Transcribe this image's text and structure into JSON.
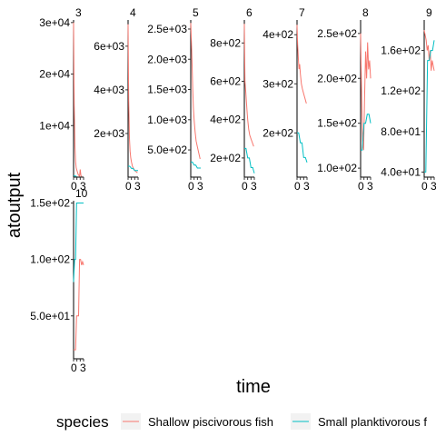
{
  "chart_data": {
    "type": "line",
    "xlabel": "time",
    "ylabel": "atoutput",
    "x_tick_labels": [
      "0",
      "3"
    ],
    "legend": {
      "title": "species",
      "position": "bottom",
      "entries": [
        {
          "name": "Shallow piscivorous fish",
          "color": "#f8766d"
        },
        {
          "name": "Small planktivorous f",
          "color": "#00bfc4"
        }
      ]
    },
    "panels": [
      {
        "label": "3",
        "ylim": [
          0,
          30500
        ],
        "yticks": [
          {
            "v": 10000,
            "t": "1e+04"
          },
          {
            "v": 20000,
            "t": "2e+04"
          },
          {
            "v": 30000,
            "t": "3e+04"
          }
        ],
        "xlim": [
          0,
          3
        ],
        "series": [
          {
            "name": "Shallow piscivorous fish",
            "x": [
              0,
              0.2,
              0.4,
              0.6,
              0.8,
              1,
              1.2,
              1.4,
              1.6,
              1.8,
              2,
              2.2,
              2.4
            ],
            "y": [
              30000,
              14000,
              6000,
              3000,
              1800,
              1300,
              900,
              500,
              300,
              200,
              1500,
              300,
              100
            ]
          },
          {
            "name": "Small planktivorous f",
            "x": [
              0,
              0.3,
              0.6,
              0.9
            ],
            "y": [
              300,
              250,
              200,
              150
            ]
          }
        ]
      },
      {
        "label": "4",
        "ylim": [
          0,
          7200
        ],
        "yticks": [
          {
            "v": 2000,
            "t": "2e+03"
          },
          {
            "v": 4000,
            "t": "4e+03"
          },
          {
            "v": 6000,
            "t": "6e+03"
          }
        ],
        "xlim": [
          0,
          3
        ],
        "series": [
          {
            "name": "Shallow piscivorous fish",
            "x": [
              0,
              0.2,
              0.4,
              0.6,
              0.8,
              1,
              1.3,
              1.6,
              2,
              2.4,
              2.8
            ],
            "y": [
              7000,
              3500,
              1800,
              1200,
              900,
              700,
              500,
              400,
              300,
              250,
              200
            ]
          },
          {
            "name": "Small planktivorous f",
            "x": [
              0,
              0.5,
              1,
              1.5,
              2,
              2.5,
              3
            ],
            "y": [
              500,
              500,
              400,
              400,
              300,
              300,
              300
            ]
          }
        ]
      },
      {
        "label": "5",
        "ylim": [
          50,
          2650
        ],
        "yticks": [
          {
            "v": 500,
            "t": "5.0e+02"
          },
          {
            "v": 1000,
            "t": "1.0e+03"
          },
          {
            "v": 1500,
            "t": "1.5e+03"
          },
          {
            "v": 2000,
            "t": "2.0e+03"
          },
          {
            "v": 2500,
            "t": "2.5e+03"
          }
        ],
        "xlim": [
          0,
          3
        ],
        "series": [
          {
            "name": "Shallow piscivorous fish",
            "x": [
              0,
              0.2,
              0.4,
              0.6,
              0.8,
              1,
              1.3,
              1.6,
              2,
              2.4,
              2.8
            ],
            "y": [
              2600,
              2300,
              1900,
              1500,
              1200,
              1000,
              800,
              650,
              550,
              450,
              350
            ]
          },
          {
            "name": "Small planktivorous f",
            "x": [
              0,
              0.5,
              1,
              1.5,
              2,
              2.5,
              3
            ],
            "y": [
              300,
              300,
              250,
              250,
              200,
              200,
              200
            ]
          }
        ]
      },
      {
        "label": "6",
        "ylim": [
          100,
          920
        ],
        "yticks": [
          {
            "v": 200,
            "t": "2e+02"
          },
          {
            "v": 400,
            "t": "4e+02"
          },
          {
            "v": 600,
            "t": "6e+02"
          },
          {
            "v": 800,
            "t": "8e+02"
          }
        ],
        "xlim": [
          0,
          3
        ],
        "series": [
          {
            "name": "Shallow piscivorous fish",
            "x": [
              0,
              0.2,
              0.4,
              0.6,
              0.8,
              1,
              1.3,
              1.6,
              2,
              2.4,
              2.8
            ],
            "y": [
              900,
              600,
              550,
              500,
              450,
              400,
              350,
              320,
              300,
              280,
              260
            ]
          },
          {
            "name": "Small planktivorous f",
            "x": [
              0,
              0.5,
              1,
              1.5,
              2,
              2.5,
              3
            ],
            "y": [
              250,
              250,
              200,
              200,
              150,
              150,
              120
            ]
          }
        ]
      },
      {
        "label": "7",
        "ylim": [
          110,
          430
        ],
        "yticks": [
          {
            "v": 200,
            "t": "2e+02"
          },
          {
            "v": 300,
            "t": "3e+02"
          },
          {
            "v": 400,
            "t": "4e+02"
          }
        ],
        "xlim": [
          0,
          3
        ],
        "series": [
          {
            "name": "Shallow piscivorous fish",
            "x": [
              0,
              0.2,
              0.4,
              0.6,
              0.8,
              1,
              1.3,
              1.6,
              2,
              2.4,
              2.8
            ],
            "y": [
              420,
              380,
              350,
              330,
              340,
              320,
              300,
              290,
              280,
              270,
              260
            ]
          },
          {
            "name": "Small planktivorous f",
            "x": [
              0,
              0.5,
              1,
              1.5,
              2,
              2.5,
              3
            ],
            "y": [
              200,
              200,
              180,
              180,
              150,
              150,
              140
            ]
          }
        ]
      },
      {
        "label": "8",
        "ylim": [
          90,
          265
        ],
        "yticks": [
          {
            "v": 100,
            "t": "1.0e+02"
          },
          {
            "v": 150,
            "t": "1.5e+02"
          },
          {
            "v": 200,
            "t": "2.0e+02"
          },
          {
            "v": 250,
            "t": "2.5e+02"
          }
        ],
        "xlim": [
          0,
          3
        ],
        "series": [
          {
            "name": "Shallow piscivorous fish",
            "x": [
              0,
              0.3,
              0.6,
              0.9,
              1.2,
              1.5,
              1.8,
              2.1,
              2.4,
              2.7,
              3
            ],
            "y": [
              250,
              180,
              130,
              120,
              180,
              230,
              200,
              240,
              210,
              220,
              200
            ]
          },
          {
            "name": "Small planktivorous f",
            "x": [
              0,
              0.5,
              1,
              1.5,
              2,
              2.5,
              3
            ],
            "y": [
              120,
              120,
              150,
              150,
              160,
              160,
              150
            ]
          }
        ]
      },
      {
        "label": "9",
        "ylim": [
          35,
          190
        ],
        "yticks": [
          {
            "v": 40,
            "t": "4.0e+01"
          },
          {
            "v": 80,
            "t": "8.0e+01"
          },
          {
            "v": 120,
            "t": "1.2e+02"
          },
          {
            "v": 160,
            "t": "1.6e+02"
          }
        ],
        "xlim": [
          0,
          3
        ],
        "series": [
          {
            "name": "Shallow piscivorous fish",
            "x": [
              0,
              0.3,
              0.6,
              0.9,
              1.2,
              1.5,
              1.8,
              2.1,
              2.4,
              2.7,
              3
            ],
            "y": [
              180,
              175,
              170,
              160,
              165,
              150,
              160,
              140,
              150,
              145,
              140
            ]
          },
          {
            "name": "Small planktivorous f",
            "x": [
              0,
              0.5,
              1,
              1.5,
              2,
              2.5,
              3
            ],
            "y": [
              40,
              40,
              150,
              150,
              160,
              160,
              170
            ]
          }
        ]
      },
      {
        "label": "10",
        "ylim": [
          12,
          152
        ],
        "yticks": [
          {
            "v": 50,
            "t": "5.0e+01"
          },
          {
            "v": 100,
            "t": "1.0e+02"
          },
          {
            "v": 150,
            "t": "1.5e+02"
          }
        ],
        "xlim": [
          0,
          3
        ],
        "series": [
          {
            "name": "Shallow piscivorous fish",
            "x": [
              0,
              0.3,
              0.6,
              0.9,
              1.2,
              1.5,
              1.8,
              2.1,
              2.4,
              2.7,
              3
            ],
            "y": [
              20,
              20,
              20,
              50,
              50,
              50,
              100,
              100,
              95,
              98,
              95
            ]
          },
          {
            "name": "Small planktivorous f",
            "x": [
              0,
              0.3,
              0.6,
              0.9,
              1.2,
              1.5,
              1.8,
              2.1,
              2.4,
              2.7,
              3
            ],
            "y": [
              80,
              100,
              100,
              150,
              150,
              150,
              150,
              150,
              150,
              150,
              150
            ]
          }
        ]
      }
    ]
  }
}
